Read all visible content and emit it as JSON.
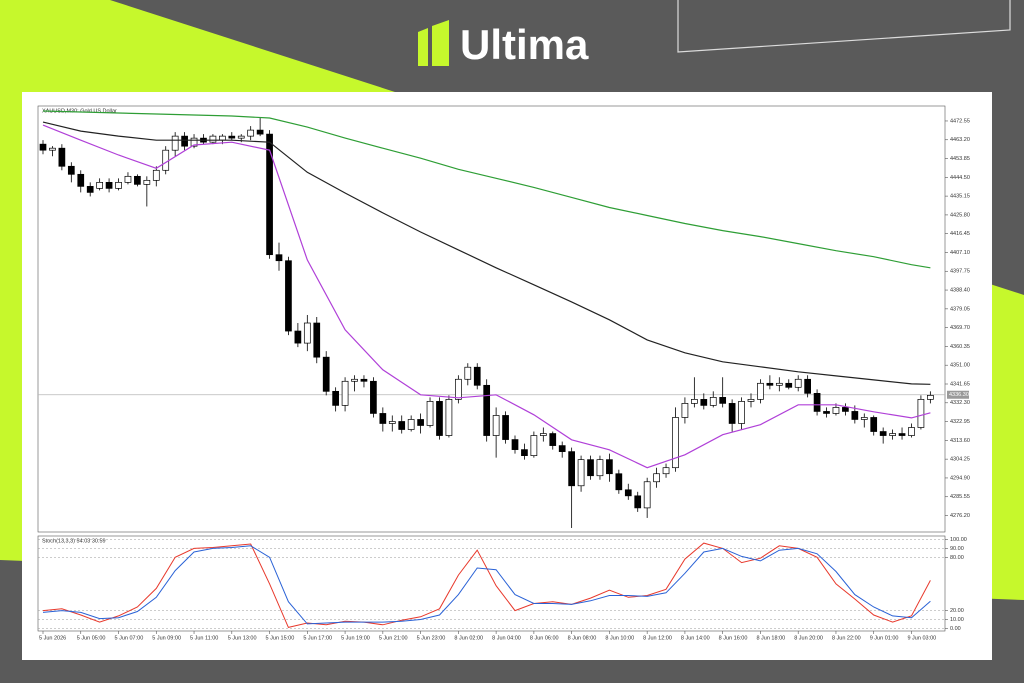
{
  "brand": "Ultima",
  "chart_data": [
    {
      "type": "candlestick",
      "title": "XAUUSD,M30: Gold US Dollar",
      "categories": [
        "5 Jun 2026",
        null,
        null,
        null,
        "5 Jun 05:00",
        null,
        null,
        null,
        "5 Jun 07:00",
        null,
        null,
        null,
        "5 Jun 09:00",
        null,
        null,
        null,
        "5 Jun 11:00",
        null,
        null,
        null,
        "5 Jun 13:00",
        null,
        null,
        null,
        "5 Jun 15:00",
        null,
        null,
        null,
        "5 Jun 17:00",
        null,
        null,
        null,
        "5 Jun 19:00",
        null,
        null,
        null,
        "5 Jun 21:00",
        null,
        null,
        null,
        "5 Jun 23:00",
        null,
        null,
        null,
        "8 Jun 02:00",
        null,
        null,
        null,
        "8 Jun 04:00",
        null,
        null,
        null,
        "8 Jun 06:00",
        null,
        null,
        null,
        "8 Jun 08:00",
        null,
        null,
        null,
        "8 Jun 10:00",
        null,
        null,
        null,
        "8 Jun 12:00",
        null,
        null,
        null,
        "8 Jun 14:00",
        null,
        null,
        null,
        "8 Jun 16:00",
        null,
        null,
        null,
        "8 Jun 18:00",
        null,
        null,
        null,
        "8 Jun 20:00",
        null,
        null,
        null,
        "8 Jun 22:00",
        null,
        null,
        null,
        "9 Jun 01:00",
        null,
        null,
        null,
        "9 Jun 03:00",
        null,
        null
      ],
      "open": [
        4461,
        4458,
        4459,
        4450,
        4446,
        4440,
        4439,
        4442,
        4439,
        4442,
        4445,
        4441,
        4443,
        4448,
        4458,
        4465,
        4460,
        4464,
        4462,
        4463,
        4465,
        4464,
        4465,
        4468,
        4466,
        4406,
        4403,
        4368,
        4362,
        4372,
        4355,
        4338,
        4331,
        4343,
        4344,
        4343,
        4327,
        4322,
        4323,
        4319,
        4324,
        4321,
        4333,
        4316,
        4334,
        4344,
        4350,
        4341,
        4316,
        4326,
        4314,
        4309,
        4306,
        4316,
        4317,
        4311,
        4308,
        4291,
        4304,
        4296,
        4304,
        4297,
        4289,
        4286,
        4280,
        4293,
        4297,
        4300,
        4325,
        4332,
        4334,
        4331,
        4335,
        4332,
        4322,
        4333,
        4334,
        4342,
        4341,
        4342,
        4340,
        4344,
        4337,
        4328,
        4327,
        4330,
        4328,
        4324,
        4325,
        4318,
        4316,
        4317,
        4316,
        4320,
        4334
      ],
      "high": [
        4463,
        4460,
        4461,
        4452,
        4448,
        4442,
        4444,
        4444,
        4444,
        4447,
        4446,
        4445,
        4450,
        4460,
        4467,
        4467,
        4466,
        4466,
        4466,
        4466,
        4467,
        4466,
        4470,
        4474,
        4468,
        4412,
        4405,
        4372,
        4376,
        4375,
        4358,
        4340,
        4345,
        4346,
        4346,
        4345,
        4330,
        4326,
        4326,
        4326,
        4327,
        4335,
        4335,
        4336,
        4346,
        4352,
        4352,
        4344,
        4330,
        4328,
        4316,
        4312,
        4318,
        4320,
        4318,
        4313,
        4310,
        4306,
        4306,
        4306,
        4307,
        4299,
        4292,
        4288,
        4295,
        4300,
        4302,
        4330,
        4335,
        4345,
        4337,
        4338,
        4345,
        4334,
        4335,
        4337,
        4344,
        4346,
        4345,
        4344,
        4346,
        4346,
        4339,
        4330,
        4332,
        4332,
        4331,
        4327,
        4326,
        4320,
        4319,
        4320,
        4322,
        4336,
        4338
      ],
      "low": [
        4456,
        4455,
        4448,
        4442,
        4437,
        4435,
        4438,
        4437,
        4438,
        4441,
        4440,
        4430,
        4440,
        4446,
        4455,
        4458,
        4459,
        4461,
        4461,
        4461,
        4463,
        4462,
        4463,
        4465,
        4404,
        4398,
        4366,
        4360,
        4358,
        4352,
        4336,
        4328,
        4328,
        4338,
        4340,
        4325,
        4318,
        4318,
        4317,
        4318,
        4317,
        4320,
        4314,
        4315,
        4332,
        4341,
        4339,
        4313,
        4305,
        4312,
        4307,
        4304,
        4305,
        4313,
        4309,
        4305,
        4270,
        4288,
        4294,
        4294,
        4293,
        4287,
        4284,
        4278,
        4275,
        4290,
        4295,
        4298,
        4322,
        4330,
        4329,
        4330,
        4330,
        4318,
        4319,
        4330,
        4332,
        4339,
        4338,
        4339,
        4338,
        4335,
        4326,
        4325,
        4326,
        4326,
        4322,
        4320,
        4316,
        4312,
        4314,
        4314,
        4315,
        4319,
        4332
      ],
      "close": [
        4458,
        4459,
        4450,
        4446,
        4440,
        4437,
        4442,
        4439,
        4442,
        4445,
        4441,
        4443,
        4448,
        4458,
        4465,
        4460,
        4464,
        4462,
        4465,
        4465,
        4464,
        4465,
        4468,
        4466,
        4406,
        4403,
        4368,
        4362,
        4372,
        4355,
        4338,
        4331,
        4343,
        4344,
        4343,
        4327,
        4322,
        4323,
        4319,
        4324,
        4321,
        4333,
        4316,
        4334,
        4344,
        4350,
        4341,
        4316,
        4326,
        4314,
        4309,
        4306,
        4316,
        4317,
        4311,
        4308,
        4291,
        4304,
        4296,
        4304,
        4297,
        4289,
        4286,
        4280,
        4293,
        4297,
        4300,
        4325,
        4332,
        4334,
        4331,
        4335,
        4332,
        4322,
        4333,
        4334,
        4342,
        4341,
        4342,
        4340,
        4344,
        4337,
        4328,
        4327,
        4330,
        4328,
        4324,
        4325,
        4318,
        4316,
        4317,
        4316,
        4320,
        4334,
        4336
      ],
      "up_color": "#ffffff",
      "down_color": "#000000",
      "series": [
        {
          "color": "#2e9e35",
          "x": [
            0,
            4,
            8,
            12,
            16,
            20,
            24,
            28,
            32,
            36,
            40,
            44,
            48,
            52,
            56,
            60,
            64,
            68,
            72,
            76,
            80,
            84,
            88,
            92,
            94
          ],
          "values": [
            4477.5,
            4477,
            4476.5,
            4476,
            4475.5,
            4475,
            4474,
            4469.5,
            4464,
            4459,
            4454,
            4448.5,
            4444,
            4439.5,
            4434.5,
            4429.5,
            4425.5,
            4421.5,
            4418,
            4415,
            4411.5,
            4408,
            4405,
            4401,
            4399.5
          ]
        },
        {
          "color": "#222222",
          "x": [
            0,
            4,
            8,
            12,
            16,
            20,
            24,
            28,
            32,
            36,
            40,
            44,
            48,
            52,
            56,
            60,
            64,
            68,
            72,
            76,
            80,
            84,
            88,
            92,
            94
          ],
          "values": [
            4472,
            4467.5,
            4465,
            4463,
            4463,
            4463,
            4462,
            4447,
            4436.7,
            4426.8,
            4417.3,
            4408.4,
            4399.5,
            4391,
            4382.5,
            4373.6,
            4363.6,
            4357.2,
            4352.7,
            4350.2,
            4347.7,
            4345.7,
            4343.7,
            4341.7,
            4341.5
          ]
        },
        {
          "color": "#b040d8",
          "x": [
            0,
            4,
            8,
            12,
            16,
            20,
            24,
            28,
            32,
            36,
            40,
            44,
            48,
            52,
            56,
            60,
            64,
            68,
            72,
            76,
            80,
            84,
            88,
            92,
            94
          ],
          "values": [
            4470.5,
            4463,
            4455.6,
            4449,
            4460.6,
            4462,
            4458,
            4403.4,
            4368.6,
            4348.7,
            4336.3,
            4334.8,
            4336.3,
            4326.3,
            4313.9,
            4308.9,
            4300,
            4306.4,
            4316.4,
            4321.4,
            4331.3,
            4331.3,
            4327.8,
            4324.8,
            4327.3
          ]
        }
      ],
      "ylim": [
        4268,
        4479
      ],
      "yticks": [
        4472.55,
        {
          "value": 4463.2,
          "label": "4463.20"
        },
        4453.85,
        {
          "value": 4444.5,
          "label": "4444.50"
        },
        4435.15,
        {
          "value": 4425.8,
          "label": "4425.80"
        },
        4416.45,
        {
          "value": 4407.1,
          "label": "4407.10"
        },
        4397.75,
        {
          "value": 4388.4,
          "label": "4388.40"
        },
        4379.05,
        {
          "value": 4369.7,
          "label": "4369.70"
        },
        4360.35,
        {
          "value": 4351,
          "label": "4351.00"
        },
        4341.65,
        {
          "value": 4332.3,
          "label": "4332.30"
        },
        4322.95,
        {
          "value": 4313.6,
          "label": "4313.60"
        },
        4304.25,
        {
          "value": 4294.9,
          "label": "4294.90"
        },
        4285.55,
        {
          "value": 4276.2,
          "label": "4276.20"
        }
      ],
      "bid": {
        "value": 4336.3,
        "label": "4336.30"
      },
      "grid": false
    },
    {
      "type": "line",
      "title": "Stoch(13,3,3) 54.03 30.59",
      "x": [
        0,
        2,
        4,
        6,
        8,
        10,
        12,
        14,
        16,
        18,
        20,
        22,
        24,
        26,
        28,
        30,
        32,
        34,
        36,
        38,
        40,
        42,
        44,
        46,
        48,
        50,
        52,
        54,
        56,
        58,
        60,
        62,
        64,
        66,
        68,
        70,
        72,
        74,
        76,
        78,
        80,
        82,
        84,
        86,
        88,
        90,
        92,
        94
      ],
      "series": [
        {
          "color": "#e8392c",
          "values": [
            20,
            22,
            15,
            7,
            14,
            24,
            45,
            80,
            90,
            91,
            93,
            95,
            50,
            1,
            6,
            4,
            8,
            7,
            4,
            9,
            13,
            22,
            60,
            88,
            48,
            20,
            28,
            30,
            27,
            34,
            43,
            35,
            37,
            44,
            78,
            96,
            90,
            74,
            79,
            93,
            90,
            80,
            50,
            33,
            15,
            7,
            14,
            54.03
          ]
        },
        {
          "color": "#2a62d6",
          "values": [
            18,
            20,
            18,
            11,
            12,
            19,
            35,
            65,
            86,
            90,
            91,
            93,
            80,
            30,
            5,
            6,
            7,
            7,
            7,
            8,
            10,
            15,
            38,
            68,
            66,
            38,
            28,
            28,
            27,
            31,
            37,
            37,
            36,
            40,
            62,
            86,
            90,
            81,
            76,
            88,
            90,
            84,
            64,
            38,
            24,
            14,
            12,
            30.59
          ]
        }
      ],
      "ylim": [
        -3,
        104
      ],
      "yticks": [
        {
          "value": 100,
          "label": "100.00"
        },
        {
          "value": 90,
          "label": "90.00"
        },
        {
          "value": 80,
          "label": "80.00"
        },
        {
          "value": 20,
          "label": "20.00"
        },
        {
          "value": 10,
          "label": "10.00"
        },
        {
          "value": 0,
          "label": "0.00"
        }
      ],
      "grid": true
    }
  ]
}
